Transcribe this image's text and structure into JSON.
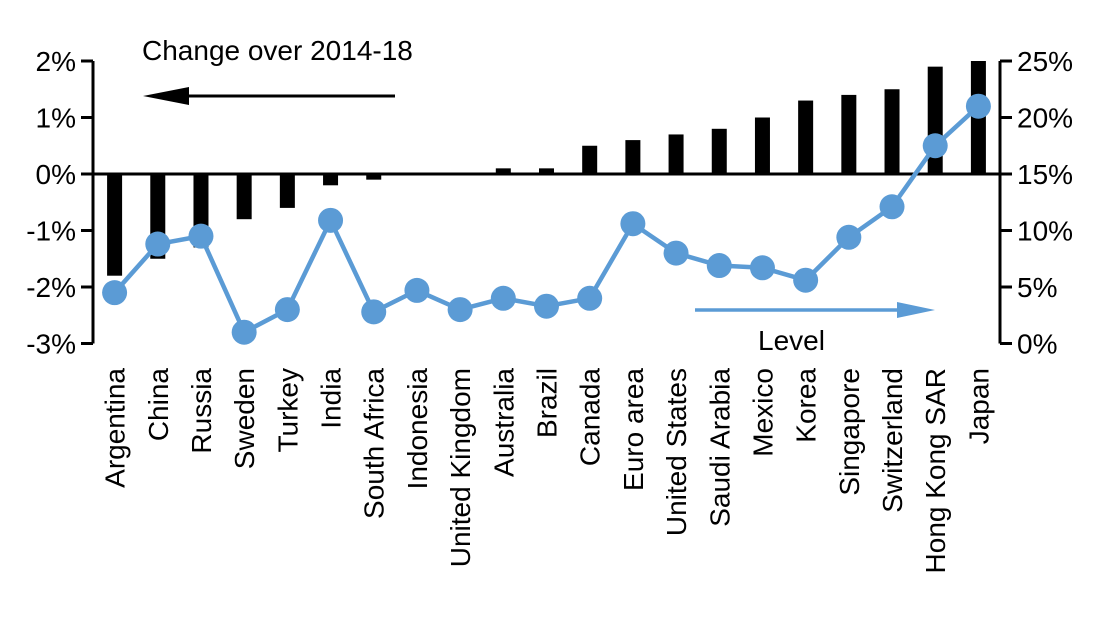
{
  "chart_data": {
    "type": "bar+line",
    "title": "Change over 2014-18",
    "line_label": "Level",
    "categories": [
      "Argentina",
      "China",
      "Russia",
      "Sweden",
      "Turkey",
      "India",
      "South Africa",
      "Indonesia",
      "United Kingdom",
      "Australia",
      "Brazil",
      "Canada",
      "Euro area",
      "United States",
      "Saudi Arabia",
      "Mexico",
      "Korea",
      "Singapore",
      "Switzerland",
      "Hong Kong SAR",
      "Japan"
    ],
    "series": [
      {
        "name": "Change over 2014-18",
        "type": "bar",
        "axis": "left",
        "color": "#000000",
        "values": [
          -1.8,
          -1.5,
          -1.3,
          -0.8,
          -0.6,
          -0.2,
          -0.1,
          0,
          0,
          0.1,
          0.1,
          0.5,
          0.6,
          0.7,
          0.8,
          1.0,
          1.3,
          1.4,
          1.5,
          1.9,
          2.0
        ]
      },
      {
        "name": "Level",
        "type": "line",
        "axis": "right",
        "color": "#5b9bd5",
        "values": [
          4.5,
          8.8,
          9.5,
          1.0,
          3.0,
          10.9,
          2.8,
          4.7,
          3.0,
          4.0,
          3.3,
          4.0,
          10.6,
          8.0,
          6.9,
          6.7,
          5.6,
          9.4,
          12.1,
          17.5,
          21.0
        ]
      }
    ],
    "left_axis": {
      "ticks": [
        "2%",
        "1%",
        "0%",
        "-1%",
        "-2%",
        "-3%"
      ],
      "values": [
        2,
        1,
        0,
        -1,
        -2,
        -3
      ],
      "min": -3,
      "max": 2
    },
    "right_axis": {
      "ticks": [
        "25%",
        "20%",
        "15%",
        "10%",
        "5%",
        "0%"
      ],
      "values": [
        25,
        20,
        15,
        10,
        5,
        0
      ],
      "min": 0,
      "max": 25
    },
    "grid": false,
    "legend_position": "in-plot annotations with arrows",
    "annotations": [
      {
        "text": "Change over 2014-18",
        "arrow_direction": "left",
        "color": "#000000"
      },
      {
        "text": "Level",
        "arrow_direction": "right",
        "color": "#5b9bd5"
      }
    ]
  },
  "colors": {
    "bar": "#000000",
    "line": "#5b9bd5",
    "axis": "#000000",
    "text": "#000000",
    "background": "#ffffff"
  }
}
